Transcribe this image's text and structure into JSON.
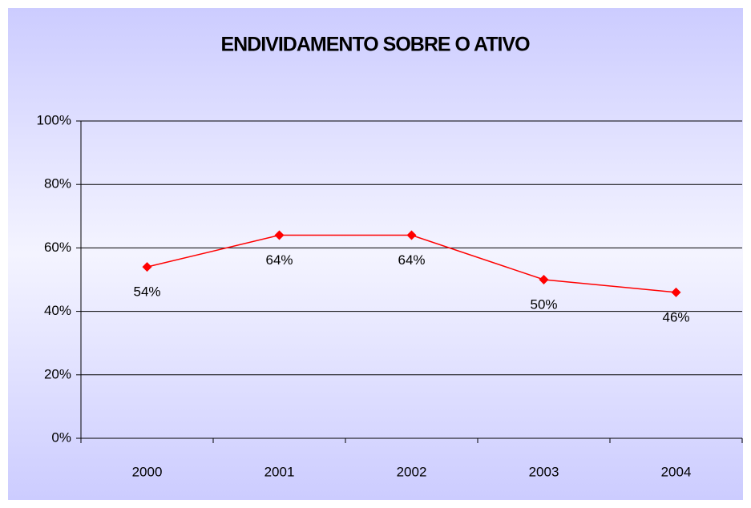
{
  "chart_data": {
    "type": "line",
    "title": "ENDIVIDAMENTO SOBRE O ATIVO",
    "categories": [
      "2000",
      "2001",
      "2002",
      "2003",
      "2004"
    ],
    "series": [
      {
        "name": null,
        "color": "#ff0000",
        "values": [
          54,
          64,
          64,
          50,
          46
        ],
        "value_labels": [
          "54%",
          "64%",
          "64%",
          "50%",
          "46%"
        ]
      }
    ],
    "ylim": [
      0,
      100
    ],
    "yticks": [
      {
        "value": 0,
        "label": "0%"
      },
      {
        "value": 20,
        "label": "20%"
      },
      {
        "value": 40,
        "label": "40%"
      },
      {
        "value": 60,
        "label": "60%"
      },
      {
        "value": 80,
        "label": "80%"
      },
      {
        "value": 100,
        "label": "100%"
      }
    ],
    "grid": true
  }
}
